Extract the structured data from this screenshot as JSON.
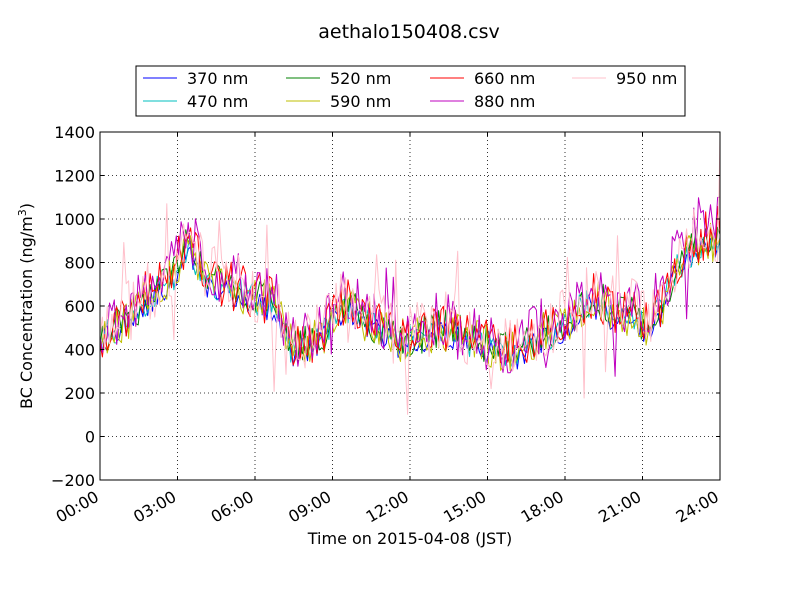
{
  "chart_data": {
    "type": "line",
    "title": "aethalo150408.csv",
    "xlabel": "Time on 2015-04-08 (JST)",
    "ylabel_main": "BC Concentration (ng/m",
    "ylabel_sup": "3",
    "ylabel_end": ")",
    "xlim": [
      0,
      24
    ],
    "ylim": [
      -200,
      1400
    ],
    "x_ticks": [
      0,
      3,
      6,
      9,
      12,
      15,
      18,
      21,
      24
    ],
    "x_tick_labels": [
      "00:00",
      "03:00",
      "06:00",
      "09:00",
      "12:00",
      "15:00",
      "18:00",
      "21:00",
      "24:00"
    ],
    "y_ticks": [
      -200,
      0,
      200,
      400,
      600,
      800,
      1000,
      1200,
      1400
    ],
    "y_tick_labels": [
      "−200",
      "0",
      "200",
      "400",
      "600",
      "800",
      "1000",
      "1200",
      "1400"
    ],
    "grid": true,
    "legend_position": "top",
    "x_unit": "hour of day",
    "series": [
      {
        "name": "370 nm",
        "color": "#0000ff",
        "y": [
          440,
          480,
          520,
          600,
          650,
          720,
          880,
          700,
          680,
          650,
          630,
          600,
          560,
          380,
          400,
          430,
          560,
          560,
          500,
          470,
          420,
          420,
          440,
          470,
          460,
          420,
          400,
          380,
          360,
          390,
          450,
          460,
          520,
          600,
          590,
          520,
          540,
          480,
          560,
          750,
          820,
          860,
          870
        ]
      },
      {
        "name": "470 nm",
        "color": "#00bfbf",
        "y": [
          450,
          490,
          540,
          620,
          670,
          740,
          900,
          720,
          700,
          670,
          650,
          620,
          580,
          400,
          420,
          450,
          580,
          590,
          520,
          490,
          440,
          440,
          460,
          490,
          480,
          440,
          420,
          400,
          380,
          410,
          470,
          480,
          540,
          620,
          610,
          540,
          560,
          500,
          580,
          770,
          850,
          890,
          900
        ]
      },
      {
        "name": "520 nm",
        "color": "#008000",
        "y": [
          460,
          500,
          550,
          630,
          680,
          750,
          910,
          730,
          710,
          680,
          660,
          630,
          590,
          410,
          430,
          460,
          590,
          600,
          530,
          500,
          450,
          450,
          470,
          500,
          490,
          450,
          430,
          410,
          390,
          420,
          480,
          490,
          550,
          630,
          620,
          550,
          570,
          510,
          590,
          780,
          870,
          900,
          920
        ]
      },
      {
        "name": "590 nm",
        "color": "#bfbf00",
        "y": [
          455,
          495,
          545,
          625,
          675,
          745,
          905,
          725,
          705,
          675,
          655,
          625,
          585,
          405,
          425,
          455,
          585,
          595,
          525,
          495,
          445,
          445,
          465,
          495,
          485,
          445,
          425,
          405,
          385,
          415,
          475,
          485,
          545,
          625,
          615,
          545,
          565,
          505,
          585,
          775,
          860,
          895,
          910
        ]
      },
      {
        "name": "660 nm",
        "color": "#ff0000",
        "y": [
          470,
          510,
          560,
          640,
          690,
          760,
          930,
          740,
          720,
          690,
          670,
          640,
          600,
          420,
          440,
          470,
          600,
          610,
          540,
          510,
          460,
          460,
          480,
          510,
          500,
          460,
          440,
          420,
          400,
          430,
          490,
          500,
          560,
          640,
          630,
          560,
          580,
          520,
          600,
          800,
          890,
          930,
          950
        ]
      },
      {
        "name": "880 nm",
        "color": "#bf00bf",
        "y": [
          490,
          530,
          590,
          670,
          720,
          800,
          980,
          770,
          750,
          720,
          700,
          670,
          620,
          440,
          460,
          500,
          630,
          640,
          570,
          540,
          480,
          480,
          500,
          540,
          520,
          470,
          450,
          430,
          410,
          450,
          510,
          520,
          590,
          670,
          660,
          590,
          610,
          540,
          630,
          840,
          940,
          1000,
          1020
        ]
      },
      {
        "name": "950 nm",
        "color": "#ffc0cb",
        "y": [
          480,
          520,
          580,
          660,
          700,
          780,
          960,
          760,
          730,
          700,
          690,
          650,
          610,
          430,
          450,
          490,
          620,
          630,
          560,
          530,
          470,
          470,
          490,
          530,
          510,
          460,
          440,
          420,
          400,
          440,
          500,
          510,
          580,
          660,
          650,
          580,
          600,
          530,
          620,
          820,
          920,
          980,
          1000
        ]
      }
    ]
  }
}
